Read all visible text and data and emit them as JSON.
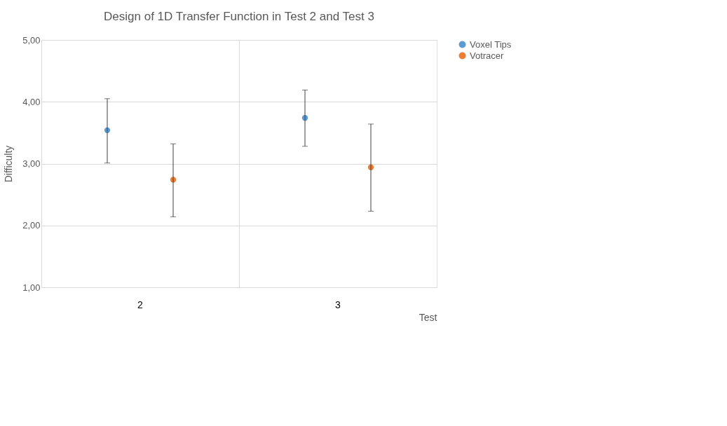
{
  "chart_data": {
    "type": "scatter",
    "title": "Design of 1D Transfer Function in Test 2 and Test 3",
    "xlabel": "Test",
    "ylabel": "Difficulty",
    "categories": [
      "2",
      "3"
    ],
    "series": [
      {
        "name": "Voxel Tips",
        "color": "#5b9bd5",
        "values": [
          3.54,
          3.74
        ],
        "errors": [
          [
            3.01,
            4.05
          ],
          [
            3.28,
            4.19
          ]
        ]
      },
      {
        "name": "Votracer",
        "color": "#ed7d31",
        "values": [
          2.74,
          2.94
        ],
        "errors": [
          [
            2.14,
            3.32
          ],
          [
            2.23,
            3.64
          ]
        ]
      }
    ],
    "ylim": [
      1,
      5
    ],
    "yticks": [
      {
        "value": 1,
        "label": "1,00"
      },
      {
        "value": 2,
        "label": "2,00"
      },
      {
        "value": 3,
        "label": "3,00"
      },
      {
        "value": 4,
        "label": "4,00"
      },
      {
        "value": 5,
        "label": "5,00"
      }
    ],
    "grid": true,
    "legend": "right",
    "marker": "circle"
  }
}
